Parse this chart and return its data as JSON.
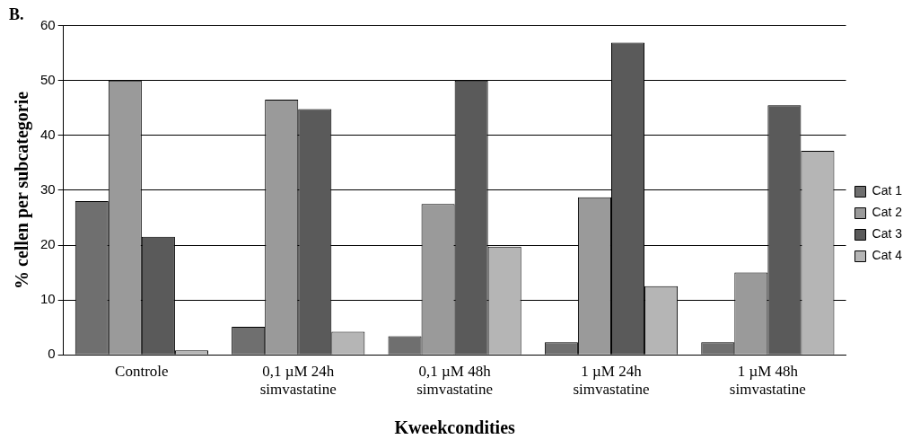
{
  "chart_data": {
    "type": "bar",
    "title": "B.",
    "xlabel": "Kweekcondities",
    "ylabel": "% cellen per subcategorie",
    "categories": [
      "Controle",
      "0,1 µM 24h\nsimvastatine",
      "0,1 µM 48h\nsimvastatine",
      "1 µM 24h\nsimvastatine",
      "1 µM 48h\nsimvastatine"
    ],
    "series": [
      {
        "name": "Cat 1",
        "color": "#6f6f6f",
        "values": [
          28,
          5.1,
          3.4,
          2.3,
          2.3
        ]
      },
      {
        "name": "Cat 2",
        "color": "#9a9a9a",
        "values": [
          50,
          46.5,
          27.5,
          28.7,
          15
        ]
      },
      {
        "name": "Cat 3",
        "color": "#5a5a5a",
        "values": [
          21.5,
          44.8,
          50,
          56.9,
          45.5
        ]
      },
      {
        "name": "Cat 4",
        "color": "#b5b5b5",
        "values": [
          0.8,
          4.2,
          19.7,
          12.5,
          37.2
        ]
      }
    ],
    "ylim": [
      0,
      60
    ],
    "yticks": [
      0,
      10,
      20,
      30,
      40,
      50,
      60
    ],
    "grid": "y",
    "legend": "right"
  }
}
